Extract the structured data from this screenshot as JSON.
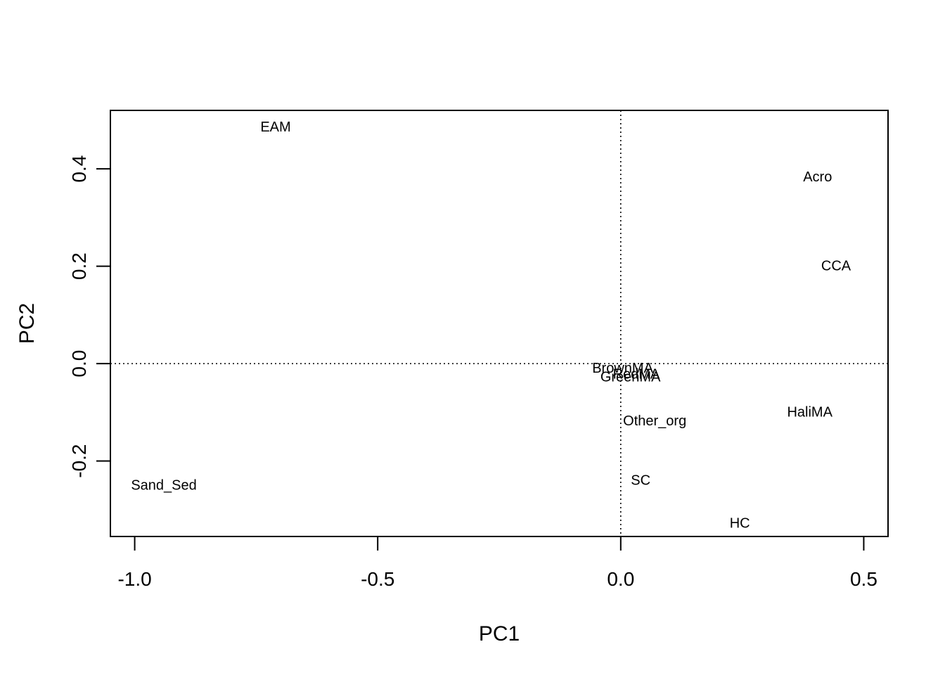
{
  "chart_data": {
    "type": "scatter",
    "title": "",
    "xlabel": "PC1",
    "ylabel": "PC2",
    "xlim": [
      -1.05,
      0.55
    ],
    "ylim": [
      -0.355,
      0.52
    ],
    "x_ticks": [
      -1.0,
      -0.5,
      0.0,
      0.5
    ],
    "x_tick_labels": [
      "-1.0",
      "-0.5",
      "0.0",
      "0.5"
    ],
    "y_ticks": [
      -0.2,
      0.0,
      0.2,
      0.4
    ],
    "y_tick_labels": [
      "-0.2",
      "0.0",
      "0.2",
      "0.4"
    ],
    "reference_lines": {
      "x": 0.0,
      "y": 0.0,
      "style": "dotted"
    },
    "grid": false,
    "legend": "none",
    "points": [
      {
        "label": "EAM",
        "x": -0.71,
        "y": 0.485
      },
      {
        "label": "Acro",
        "x": 0.405,
        "y": 0.383
      },
      {
        "label": "CCA",
        "x": 0.443,
        "y": 0.2
      },
      {
        "label": "BrownMA",
        "x": 0.004,
        "y": -0.01
      },
      {
        "label": "RedMA",
        "x": 0.032,
        "y": -0.022
      },
      {
        "label": "GreenMA",
        "x": 0.02,
        "y": -0.028
      },
      {
        "label": "HaliMA",
        "x": 0.389,
        "y": -0.1
      },
      {
        "label": "Other_org",
        "x": 0.07,
        "y": -0.118
      },
      {
        "label": "SC",
        "x": 0.041,
        "y": -0.24
      },
      {
        "label": "Sand_Sed",
        "x": -0.94,
        "y": -0.25
      },
      {
        "label": "HC",
        "x": 0.245,
        "y": -0.328
      }
    ]
  }
}
